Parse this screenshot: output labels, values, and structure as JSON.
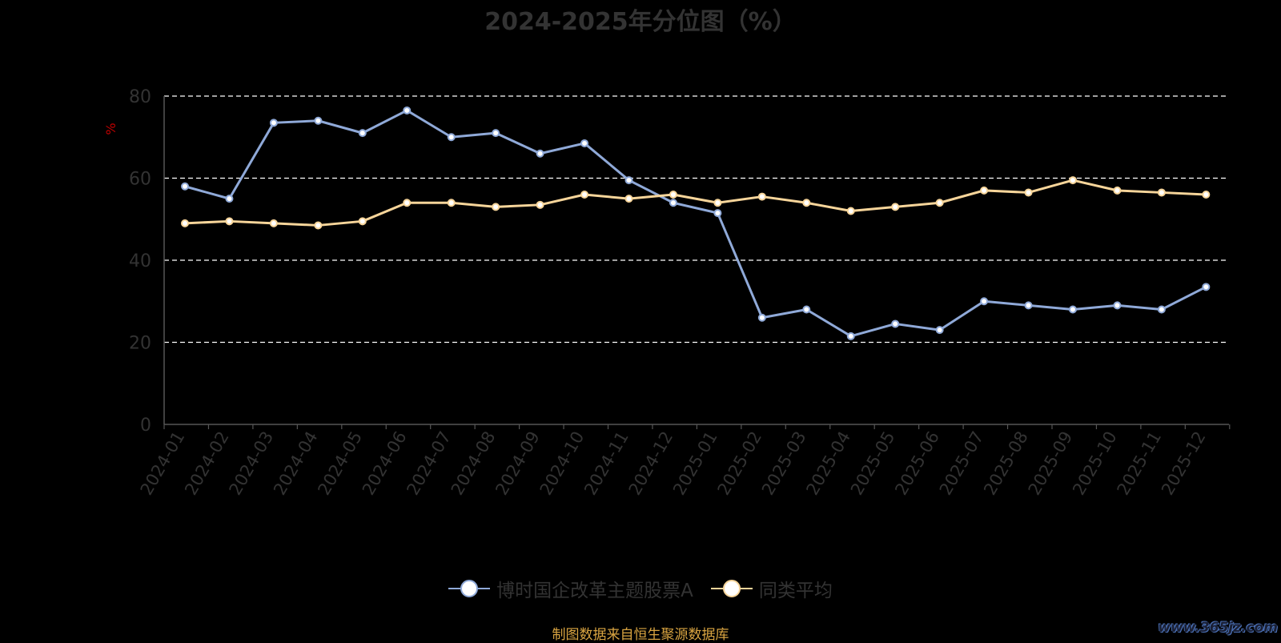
{
  "title": "2024-2025年分位图（%）",
  "footer": "制图数据来自恒生聚源数据库",
  "watermark": "www.365jz.com",
  "chart_data": {
    "type": "line",
    "title": "2024-2025年分位图（%）",
    "ylabel": "%",
    "xlabel": "",
    "ylim": [
      0,
      80
    ],
    "yticks": [
      0,
      20,
      40,
      60,
      80
    ],
    "grid": true,
    "legend_position": "bottom",
    "categories": [
      "2024-01",
      "2024-02",
      "2024-03",
      "2024-04",
      "2024-05",
      "2024-06",
      "2024-07",
      "2024-08",
      "2024-09",
      "2024-10",
      "2024-11",
      "2024-12",
      "2025-01",
      "2025-02",
      "2025-03",
      "2025-04",
      "2025-05",
      "2025-06",
      "2025-07",
      "2025-08",
      "2025-09",
      "2025-10",
      "2025-11",
      "2025-12"
    ],
    "series": [
      {
        "name": "博时国企改革主题股票A",
        "color": "#8fa9d8",
        "values": [
          58,
          55,
          73.5,
          74,
          71,
          76.5,
          70,
          71,
          66,
          68.5,
          59.5,
          54,
          51.5,
          26,
          28,
          21.5,
          24.5,
          23,
          30,
          29,
          28,
          29,
          28,
          33.5
        ]
      },
      {
        "name": "同类平均",
        "color": "#f7d59a",
        "values": [
          49,
          49.5,
          49,
          48.5,
          49.5,
          54,
          54,
          53,
          53.5,
          56,
          55,
          56,
          54,
          55.5,
          54,
          52,
          53,
          54,
          57,
          56.5,
          59.5,
          57,
          56.5,
          56
        ]
      }
    ],
    "colors": {
      "axis": "#555555",
      "grid": "#ffffff",
      "tick_label": "#333333",
      "ylabel": "#c00000"
    }
  }
}
